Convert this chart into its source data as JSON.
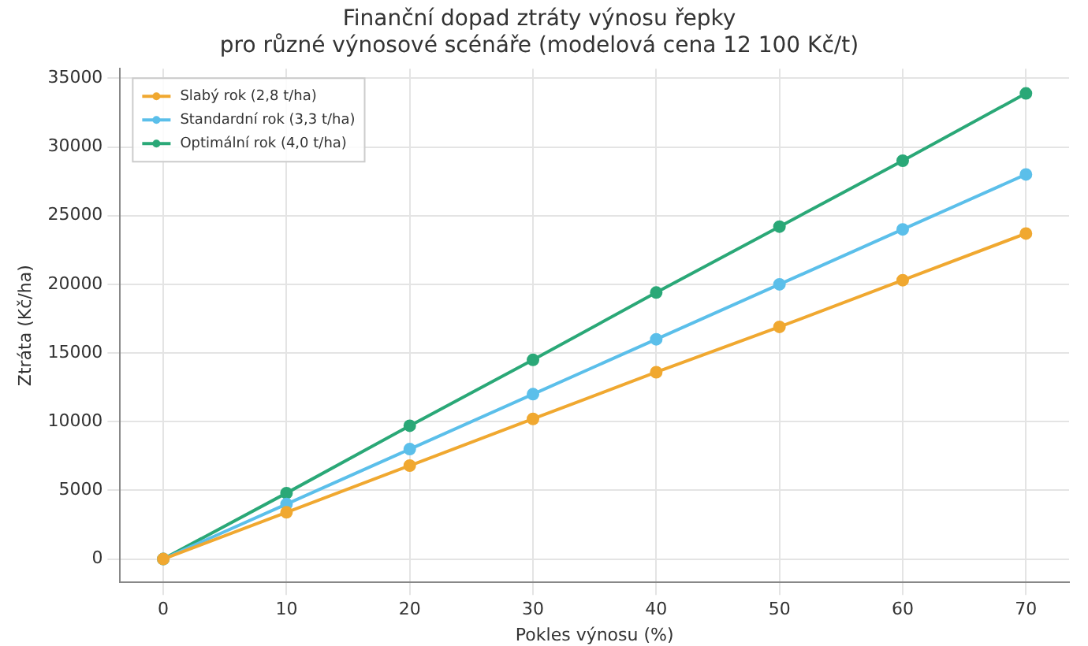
{
  "chart_data": {
    "type": "line",
    "title": "Finanční dopad ztráty výnosu řepky\npro různé výnosové scénáře (modelová cena 12 100 Kč/t)",
    "xlabel": "Pokles výnosu (%)",
    "ylabel": "Ztráta (Kč/ha)",
    "x": [
      0,
      10,
      20,
      30,
      40,
      50,
      60,
      70
    ],
    "series": [
      {
        "name": "Slabý rok (2,8 t/ha)",
        "color": "#f0a830",
        "values": [
          0,
          3400,
          6800,
          10200,
          13600,
          16900,
          20300,
          23700
        ]
      },
      {
        "name": "Standardní rok (3,3 t/ha)",
        "color": "#5bbfea",
        "values": [
          0,
          4000,
          8000,
          12000,
          16000,
          20000,
          24000,
          28000
        ]
      },
      {
        "name": "Optimální rok (4,0 t/ha)",
        "color": "#2aa877",
        "values": [
          0,
          4800,
          9700,
          14500,
          19400,
          24200,
          29000,
          33900
        ]
      }
    ],
    "xlim": [
      -3.5,
      73.5
    ],
    "xticks": [
      0,
      10,
      20,
      30,
      40,
      50,
      60,
      70
    ],
    "ylim": [
      -1700,
      35700
    ],
    "yticks": [
      0,
      5000,
      10000,
      15000,
      20000,
      25000,
      30000,
      35000
    ],
    "grid": true,
    "legend": "top left",
    "marker": "circle",
    "line_style": "solid"
  }
}
